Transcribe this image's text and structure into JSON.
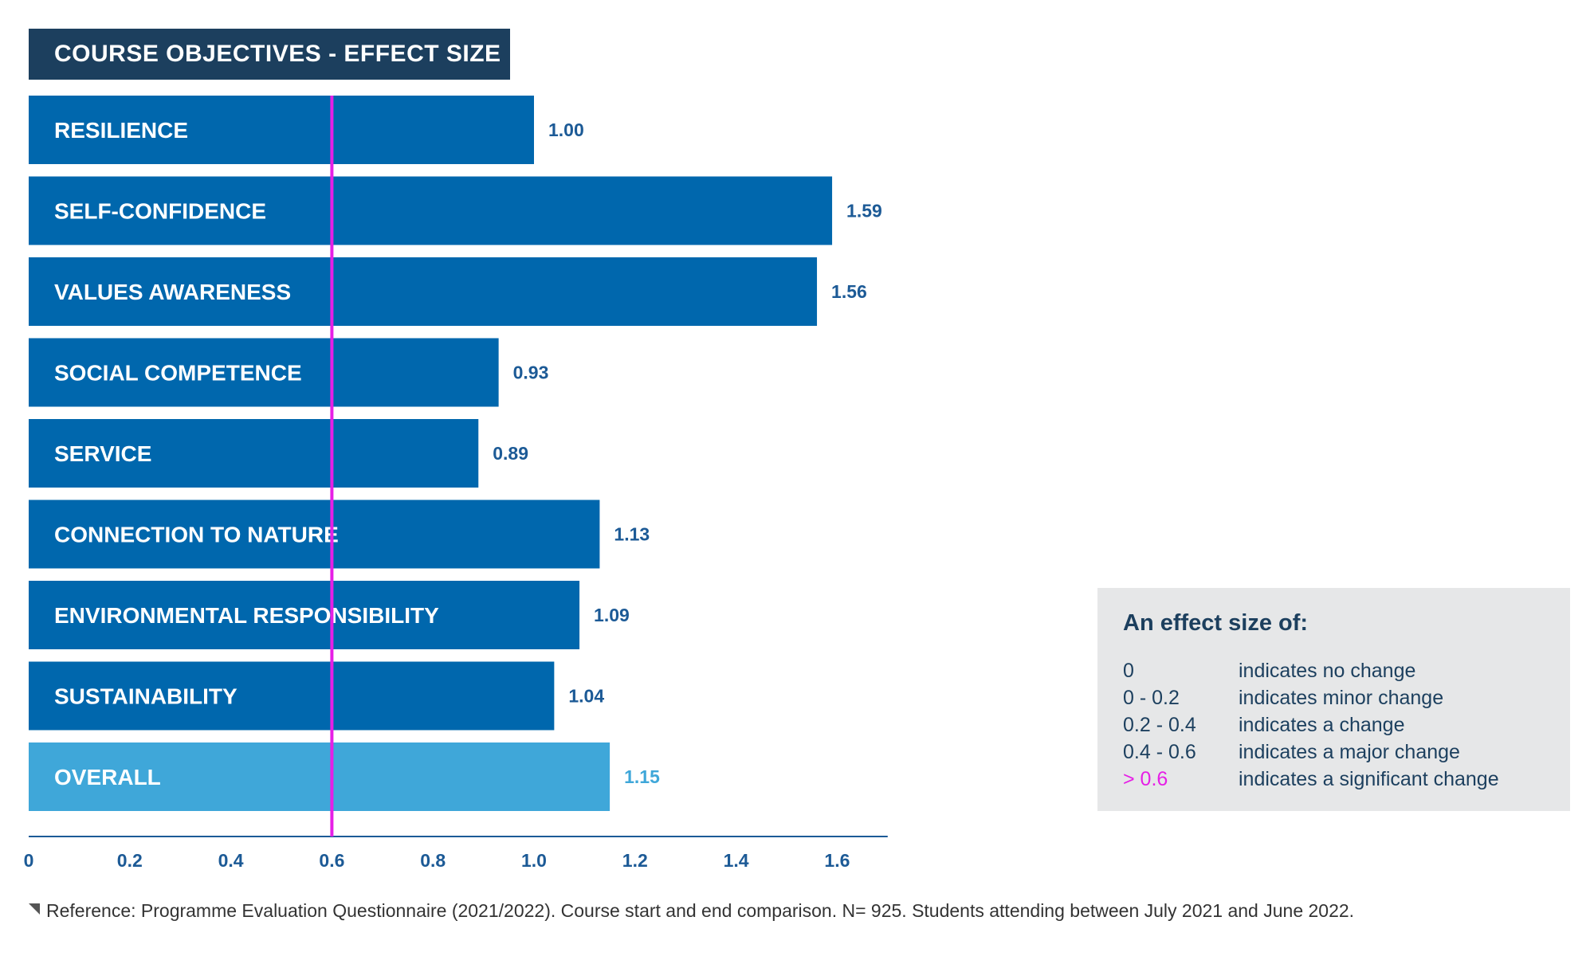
{
  "header": {
    "title": "COURSE OBJECTIVES - EFFECT SIZE"
  },
  "chart_data": {
    "type": "bar",
    "orientation": "horizontal",
    "title": "COURSE OBJECTIVES - EFFECT SIZE",
    "categories": [
      "RESILIENCE",
      "SELF-CONFIDENCE",
      "VALUES AWARENESS",
      "SOCIAL COMPETENCE",
      "SERVICE",
      "CONNECTION TO NATURE",
      "ENVIRONMENTAL RESPONSIBILITY",
      "SUSTAINABILITY",
      "OVERALL"
    ],
    "values": [
      1.0,
      1.59,
      1.56,
      0.93,
      0.89,
      1.13,
      1.09,
      1.04,
      1.15
    ],
    "value_labels": [
      "1.00",
      "1.59",
      "1.56",
      "0.93",
      "0.89",
      "1.13",
      "1.09",
      "1.04",
      "1.15"
    ],
    "highlight_last": true,
    "xlim": [
      0,
      1.7
    ],
    "xticks": [
      0,
      0.2,
      0.4,
      0.6,
      0.8,
      1.0,
      1.2,
      1.4,
      1.6
    ],
    "xtick_labels": [
      "0",
      "0.2",
      "0.4",
      "0.6",
      "0.8",
      "1.0",
      "1.2",
      "1.4",
      "1.6"
    ],
    "reference_line": {
      "value": 0.6,
      "color": "#e61fe6"
    },
    "grid": false,
    "colors": {
      "bar": "#0067ad",
      "highlight": "#3fa7d9",
      "label_text": "#1c5a96",
      "axis": "#1c5a96"
    }
  },
  "legend": {
    "title": "An effect size of:",
    "rows": [
      {
        "range": "0",
        "text": "indicates no change"
      },
      {
        "range": "0 - 0.2",
        "text": "indicates minor change"
      },
      {
        "range": "0.2 - 0.4",
        "text": "indicates a change"
      },
      {
        "range": "0.4 - 0.6",
        "text": "indicates a major change"
      },
      {
        "range": "> 0.6",
        "text": "indicates a significant change"
      }
    ]
  },
  "footnote": "Reference: Programme Evaluation Questionnaire (2021/2022). Course start and end comparison. N= 925. Students attending between July 2021 and June 2022."
}
